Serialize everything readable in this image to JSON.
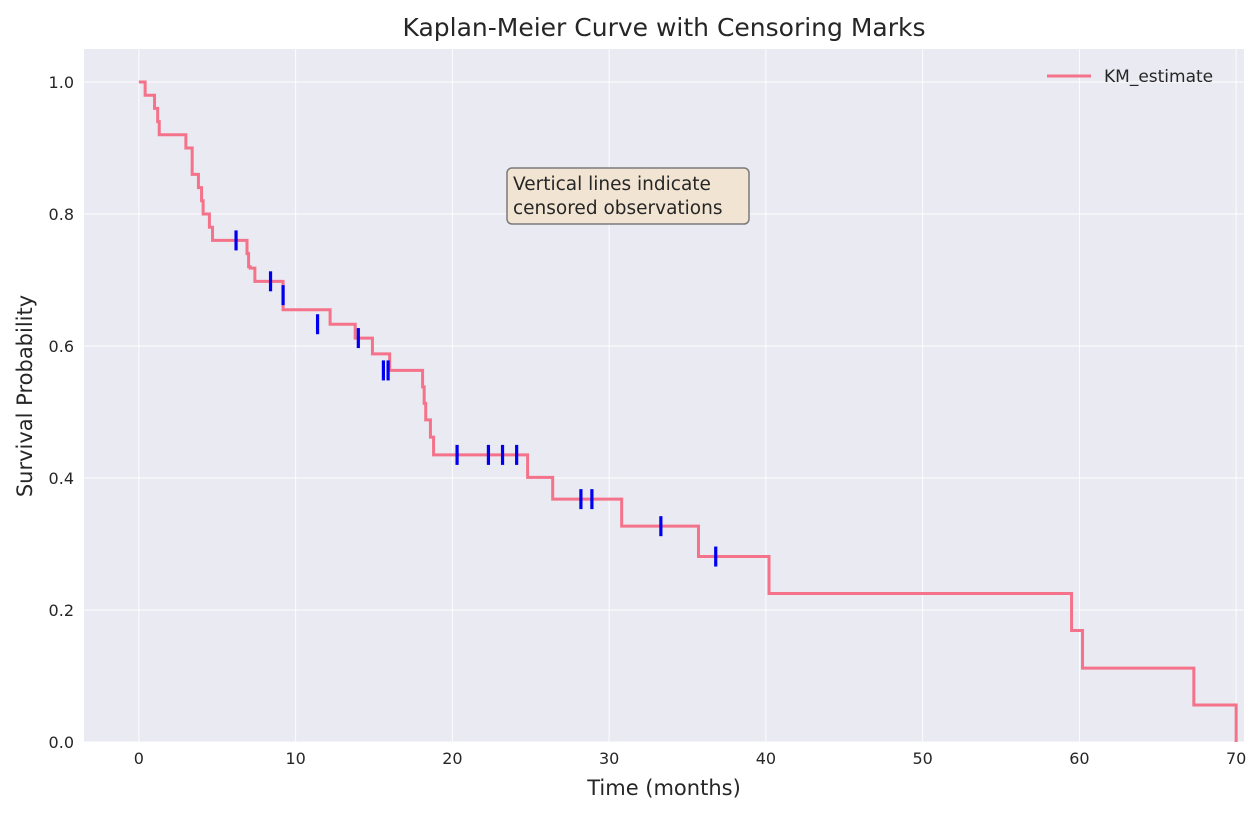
{
  "chart_data": {
    "type": "line",
    "title": "Kaplan-Meier Curve with Censoring Marks",
    "xlabel": "Time (months)",
    "ylabel": "Survival Probability",
    "xlim": [
      -3.5,
      70.5
    ],
    "ylim": [
      0.0,
      1.05
    ],
    "xticks": [
      0,
      10,
      20,
      30,
      40,
      50,
      60,
      70
    ],
    "xtick_labels": [
      "0",
      "10",
      "20",
      "30",
      "40",
      "50",
      "60",
      "70"
    ],
    "yticks": [
      0.0,
      0.2,
      0.4,
      0.6,
      0.8,
      1.0
    ],
    "ytick_labels": [
      "0.0",
      "0.2",
      "0.4",
      "0.6",
      "0.8",
      "1.0"
    ],
    "grid": true,
    "legend_position": "top-right",
    "annotation": [
      "Vertical lines indicate",
      "censored observations"
    ],
    "series": [
      {
        "name": "KM_estimate",
        "color": "#f4728a",
        "step": "post",
        "x": [
          0,
          0.4,
          1.0,
          1.2,
          1.3,
          3.0,
          3.4,
          3.8,
          4.0,
          4.1,
          4.5,
          4.7,
          6.9,
          7.0,
          7.1,
          7.4,
          9.2,
          12.2,
          13.8,
          14.5,
          14.9,
          16.0,
          16.3,
          17.0,
          17.3,
          17.5,
          18.1,
          18.2,
          18.3,
          18.4,
          18.6,
          18.8,
          19.0,
          24.8,
          26.4,
          30.8,
          35.7,
          40.2,
          59.5,
          60.2,
          67.3,
          70.0
        ],
        "y": [
          1.0,
          0.98,
          0.96,
          0.94,
          0.92,
          0.9,
          0.86,
          0.84,
          0.82,
          0.8,
          0.78,
          0.76,
          0.74,
          0.72,
          0.718,
          0.698,
          0.655,
          0.633,
          0.612,
          0.612,
          0.588,
          0.563,
          0.563,
          0.563,
          0.563,
          0.563,
          0.538,
          0.513,
          0.488,
          0.488,
          0.462,
          0.435,
          0.435,
          0.401,
          0.368,
          0.327,
          0.281,
          0.225,
          0.169,
          0.112,
          0.056,
          0.0
        ]
      }
    ],
    "censored": {
      "color": "#0000ee",
      "x": [
        6.2,
        8.4,
        9.2,
        11.4,
        14.0,
        15.6,
        15.9,
        20.3,
        22.3,
        23.2,
        24.1,
        28.2,
        28.9,
        33.3,
        36.8
      ],
      "y": [
        0.76,
        0.698,
        0.677,
        0.633,
        0.612,
        0.563,
        0.563,
        0.435,
        0.435,
        0.435,
        0.435,
        0.368,
        0.368,
        0.327,
        0.281
      ]
    }
  }
}
